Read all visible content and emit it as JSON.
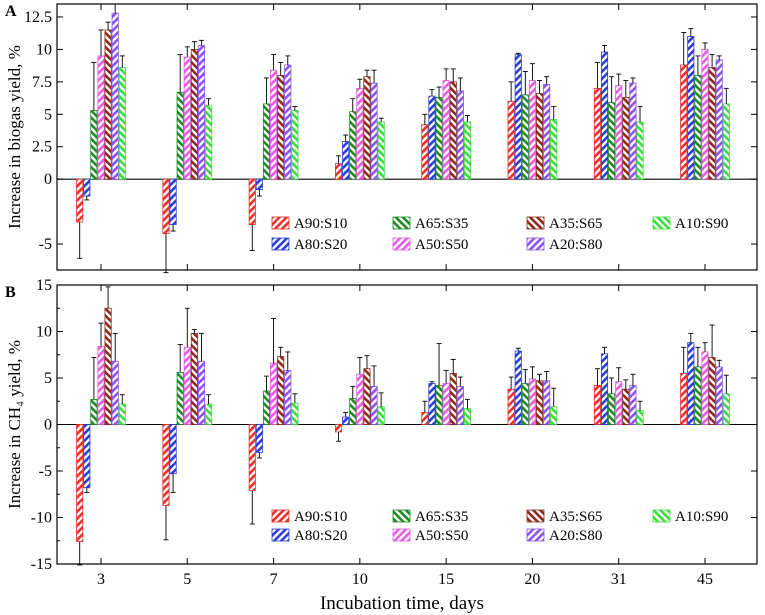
{
  "figure": {
    "xlabel": "Incubation time, days"
  },
  "legend": [
    {
      "label": "A90:S10",
      "color": "#e8312a",
      "hatch": "fwd"
    },
    {
      "label": "A80:S20",
      "color": "#2b3fd6",
      "hatch": "fwd"
    },
    {
      "label": "A65:S35",
      "color": "#1e8a24",
      "hatch": "back"
    },
    {
      "label": "A50:S50",
      "color": "#e35ce3",
      "hatch": "fwd"
    },
    {
      "label": "A35:S65",
      "color": "#8a2c1c",
      "hatch": "back"
    },
    {
      "label": "A20:S80",
      "color": "#8a55e8",
      "hatch": "fwd"
    },
    {
      "label": "A10:S90",
      "color": "#3ddc3d",
      "hatch": "back"
    }
  ],
  "chart_data": [
    {
      "type": "bar",
      "panel_label": "A",
      "title": "",
      "xlabel": "",
      "ylabel": "Increase in biogas yield, %",
      "ylim": [
        -7,
        13.5
      ],
      "yticks": [
        "-5",
        "0",
        "2.5",
        "5",
        "7.5",
        "10",
        "12.5"
      ],
      "categories": [
        "3",
        "5",
        "7",
        "10",
        "15",
        "20",
        "31",
        "45"
      ],
      "series": [
        {
          "name": "A90:S10",
          "values": [
            -3.3,
            -4.2,
            -3.5,
            1.2,
            4.2,
            6.0,
            7.0,
            8.8
          ],
          "errors": [
            2.8,
            3.0,
            2.0,
            0.6,
            0.8,
            1.5,
            2.0,
            2.5
          ]
        },
        {
          "name": "A80:S20",
          "values": [
            -1.3,
            -3.5,
            -0.8,
            2.9,
            6.4,
            9.6,
            9.8,
            11.0
          ],
          "errors": [
            0.3,
            0.5,
            0.5,
            0.5,
            0.5,
            0.1,
            0.5,
            0.6
          ]
        },
        {
          "name": "A65:S35",
          "values": [
            5.3,
            6.7,
            5.8,
            5.2,
            6.3,
            6.5,
            5.9,
            8.0
          ],
          "errors": [
            3.7,
            2.9,
            2.0,
            1.0,
            0.8,
            1.8,
            2.0,
            1.5
          ]
        },
        {
          "name": "A50:S50",
          "values": [
            9.5,
            9.4,
            8.4,
            7.0,
            7.6,
            7.6,
            7.2,
            10.0
          ],
          "errors": [
            2.0,
            0.8,
            1.2,
            0.7,
            0.9,
            1.3,
            0.9,
            0.5
          ]
        },
        {
          "name": "A35:S65",
          "values": [
            11.5,
            10.0,
            8.0,
            7.9,
            7.5,
            6.6,
            6.3,
            8.6
          ],
          "errors": [
            0.6,
            0.6,
            1.0,
            0.5,
            1.0,
            1.0,
            1.3,
            1.0
          ]
        },
        {
          "name": "A20:S80",
          "values": [
            12.8,
            10.3,
            8.8,
            7.4,
            6.8,
            7.3,
            7.4,
            9.2
          ],
          "errors": [
            0.7,
            0.4,
            0.7,
            1.0,
            1.0,
            0.6,
            0.4,
            0.3
          ]
        },
        {
          "name": "A10:S90",
          "values": [
            8.6,
            5.7,
            5.3,
            4.4,
            4.4,
            4.6,
            4.4,
            5.8
          ],
          "errors": [
            0.9,
            0.5,
            0.3,
            0.3,
            0.5,
            1.0,
            1.2,
            1.2
          ]
        }
      ]
    },
    {
      "type": "bar",
      "panel_label": "B",
      "title": "",
      "xlabel": "Incubation time, days",
      "ylabel": "Increase in CH₄ yield, %",
      "ylim": [
        -15,
        15
      ],
      "yticks": [
        "-15",
        "-10",
        "-5",
        "0",
        "5",
        "10",
        "15"
      ],
      "categories": [
        "3",
        "5",
        "7",
        "10",
        "15",
        "20",
        "31",
        "45"
      ],
      "series": [
        {
          "name": "A90:S10",
          "values": [
            -12.6,
            -8.7,
            -7.1,
            -0.8,
            1.3,
            3.8,
            4.2,
            5.5
          ],
          "errors": [
            2.5,
            3.7,
            3.6,
            1.0,
            1.2,
            1.3,
            1.8,
            2.8
          ]
        },
        {
          "name": "A80:S20",
          "values": [
            -6.8,
            -5.3,
            -3.0,
            0.8,
            4.4,
            7.9,
            7.6,
            8.8
          ],
          "errors": [
            0.5,
            2.0,
            0.6,
            0.5,
            0.2,
            0.3,
            0.7,
            1.0
          ]
        },
        {
          "name": "A65:S35",
          "values": [
            2.7,
            5.6,
            3.6,
            2.8,
            4.2,
            4.4,
            3.3,
            6.2
          ],
          "errors": [
            4.5,
            3.0,
            1.6,
            1.3,
            4.5,
            1.5,
            1.7,
            2.1
          ]
        },
        {
          "name": "A50:S50",
          "values": [
            8.4,
            8.3,
            6.6,
            5.4,
            4.4,
            4.9,
            4.6,
            7.8
          ],
          "errors": [
            2.5,
            4.2,
            4.8,
            1.8,
            1.4,
            1.3,
            1.5,
            1.0
          ]
        },
        {
          "name": "A35:S65",
          "values": [
            12.5,
            9.8,
            7.3,
            6.0,
            5.5,
            4.7,
            3.8,
            7.2
          ],
          "errors": [
            2.3,
            0.4,
            1.0,
            1.4,
            1.5,
            0.7,
            1.0,
            3.5
          ]
        },
        {
          "name": "A20:S80",
          "values": [
            6.8,
            6.8,
            5.8,
            4.1,
            4.1,
            4.7,
            4.2,
            6.2
          ],
          "errors": [
            3.0,
            3.0,
            2.0,
            2.2,
            1.0,
            1.0,
            1.2,
            0.7
          ]
        },
        {
          "name": "A10:S90",
          "values": [
            2.2,
            2.2,
            2.3,
            1.9,
            1.7,
            1.9,
            1.5,
            3.3
          ],
          "errors": [
            1.0,
            1.0,
            1.0,
            1.5,
            1.0,
            2.0,
            1.0,
            2.0
          ]
        }
      ]
    }
  ]
}
